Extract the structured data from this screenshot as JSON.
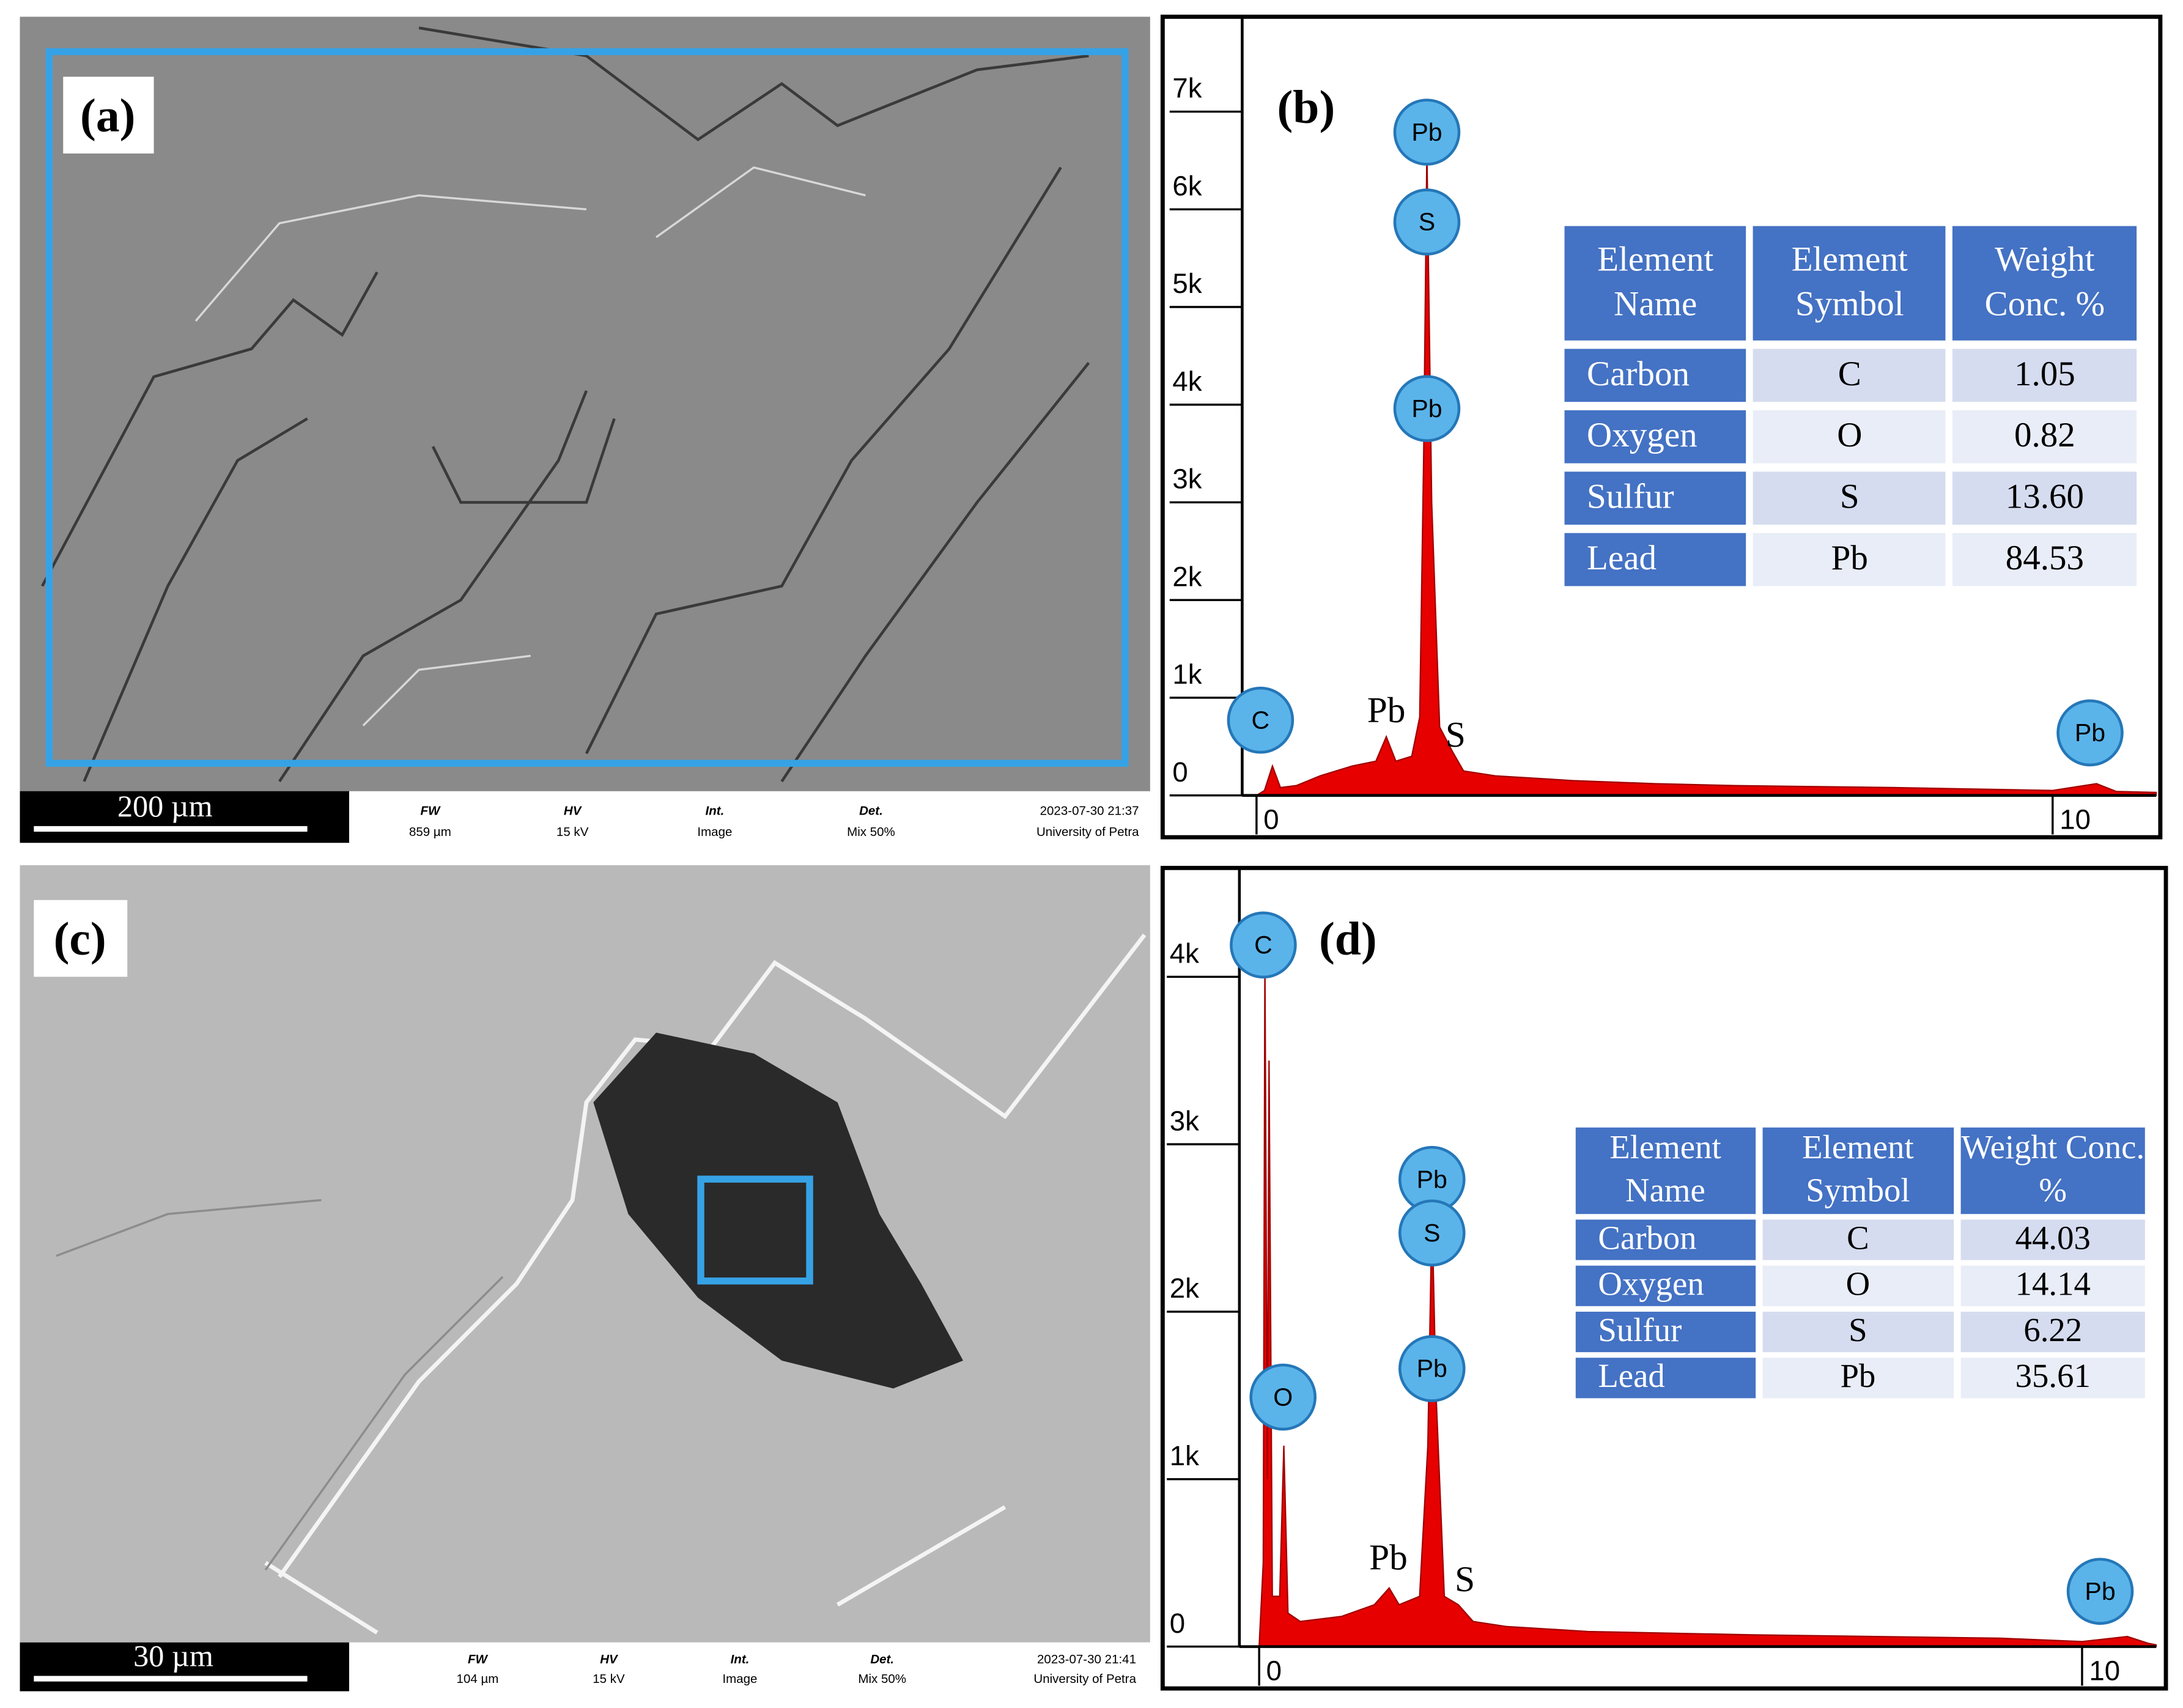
{
  "panels": [
    {
      "label": "(a)",
      "scale_bar": "200 µm",
      "info": [
        {
          "label": "FW",
          "value": "859 µm"
        },
        {
          "label": "HV",
          "value": "15 kV"
        },
        {
          "label": "Int.",
          "value": "Image"
        },
        {
          "label": "Det.",
          "value": "Mix 50%"
        }
      ],
      "timestamp": "2023-07-30 21:37",
      "institution": "University of Petra"
    },
    {
      "label": "(c)",
      "scale_bar": "30 µm",
      "info": [
        {
          "label": "FW",
          "value": "104 µm"
        },
        {
          "label": "HV",
          "value": "15 kV"
        },
        {
          "label": "Int.",
          "value": "Image"
        },
        {
          "label": "Det.",
          "value": "Mix 50%"
        }
      ],
      "timestamp": "2023-07-30 21:41",
      "institution": "University of Petra"
    }
  ],
  "chart_data": [
    {
      "type": "area",
      "title": "(b)",
      "color": "#e60000",
      "x": [
        0,
        0.1,
        0.2,
        0.3,
        0.5,
        0.8,
        1.2,
        1.5,
        1.63,
        1.75,
        1.95,
        2.05,
        2.1,
        2.14,
        2.2,
        2.3,
        2.46,
        2.6,
        3,
        4,
        5,
        6,
        8,
        10,
        10.55,
        10.8,
        11.3
      ],
      "values": [
        0,
        50,
        300,
        80,
        100,
        200,
        300,
        350,
        600,
        350,
        400,
        800,
        3500,
        6600,
        3000,
        700,
        450,
        250,
        200,
        150,
        120,
        100,
        80,
        50,
        120,
        40,
        30
      ],
      "xlim": [
        -0.18,
        11.3
      ],
      "ylim": [
        0,
        7900
      ],
      "xticks": [
        0,
        10
      ],
      "yticks": [
        0,
        {
          "value": 1000,
          "label": "1k"
        },
        {
          "value": 2000,
          "label": "2k"
        },
        {
          "value": 3000,
          "label": "3k"
        },
        {
          "value": 4000,
          "label": "4k"
        },
        {
          "value": 5000,
          "label": "5k"
        },
        {
          "value": 6000,
          "label": "6k"
        },
        {
          "value": 7000,
          "label": "7k"
        }
      ],
      "annotations": [
        {
          "text": "Pb",
          "x": 2.14,
          "y": 6790,
          "style": "circle"
        },
        {
          "text": "S",
          "x": 2.14,
          "y": 5870,
          "style": "circle"
        },
        {
          "text": "Pb",
          "x": 2.14,
          "y": 3960,
          "style": "circle"
        },
        {
          "text": "C",
          "x": 0.05,
          "y": 770,
          "style": "circle"
        },
        {
          "text": "Pb",
          "x": 1.63,
          "y": 750,
          "style": "text"
        },
        {
          "text": "S",
          "x": 2.5,
          "y": 500,
          "style": "text"
        },
        {
          "text": "Pb",
          "x": 10.47,
          "y": 640,
          "style": "circle"
        }
      ],
      "table": {
        "header": [
          "Element Name",
          "Element Symbol",
          "Weight Conc. %"
        ],
        "rows": [
          [
            "Carbon",
            "C",
            "1.05"
          ],
          [
            "Oxygen",
            "O",
            "0.82"
          ],
          [
            "Sulfur",
            "S",
            "13.60"
          ],
          [
            "Lead",
            "Pb",
            "84.53"
          ]
        ]
      }
    },
    {
      "type": "area",
      "title": "(d)",
      "color": "#e60000",
      "x": [
        0,
        0.05,
        0.07,
        0.1,
        0.12,
        0.16,
        0.25,
        0.3,
        0.35,
        0.5,
        1,
        1.4,
        1.58,
        1.7,
        1.95,
        2.05,
        2.1,
        2.15,
        2.25,
        2.42,
        2.6,
        3,
        4,
        6,
        9,
        10,
        10.55,
        10.8,
        10.9
      ],
      "values": [
        0,
        500,
        4100,
        1000,
        3500,
        300,
        300,
        1200,
        200,
        150,
        180,
        250,
        350,
        250,
        300,
        1200,
        2600,
        1500,
        300,
        250,
        150,
        120,
        90,
        70,
        50,
        30,
        60,
        20,
        10
      ],
      "xlim": [
        -0.24,
        10.9
      ],
      "ylim": [
        0,
        4600
      ],
      "xticks": [
        0,
        10
      ],
      "yticks": [
        0,
        {
          "value": 1000,
          "label": "1k"
        },
        {
          "value": 2000,
          "label": "2k"
        },
        {
          "value": 3000,
          "label": "3k"
        },
        {
          "value": 4000,
          "label": "4k"
        }
      ],
      "annotations": [
        {
          "text": "C",
          "x": 0.05,
          "y": 4190,
          "style": "circle"
        },
        {
          "text": "Pb",
          "x": 2.1,
          "y": 2790,
          "style": "circle"
        },
        {
          "text": "S",
          "x": 2.1,
          "y": 2470,
          "style": "circle"
        },
        {
          "text": "Pb",
          "x": 2.1,
          "y": 1660,
          "style": "circle"
        },
        {
          "text": "O",
          "x": 0.29,
          "y": 1490,
          "style": "circle"
        },
        {
          "text": "Pb",
          "x": 1.57,
          "y": 460,
          "style": "text"
        },
        {
          "text": "S",
          "x": 2.5,
          "y": 330,
          "style": "text"
        },
        {
          "text": "Pb",
          "x": 10.22,
          "y": 330,
          "style": "circle"
        }
      ],
      "table": {
        "header": [
          "Element Name",
          "Element Symbol",
          "Weight Conc. %"
        ],
        "rows": [
          [
            "Carbon",
            "C",
            "44.03"
          ],
          [
            "Oxygen",
            "O",
            "14.14"
          ],
          [
            "Sulfur",
            "S",
            "6.22"
          ],
          [
            "Lead",
            "Pb",
            "35.61"
          ]
        ]
      }
    }
  ]
}
